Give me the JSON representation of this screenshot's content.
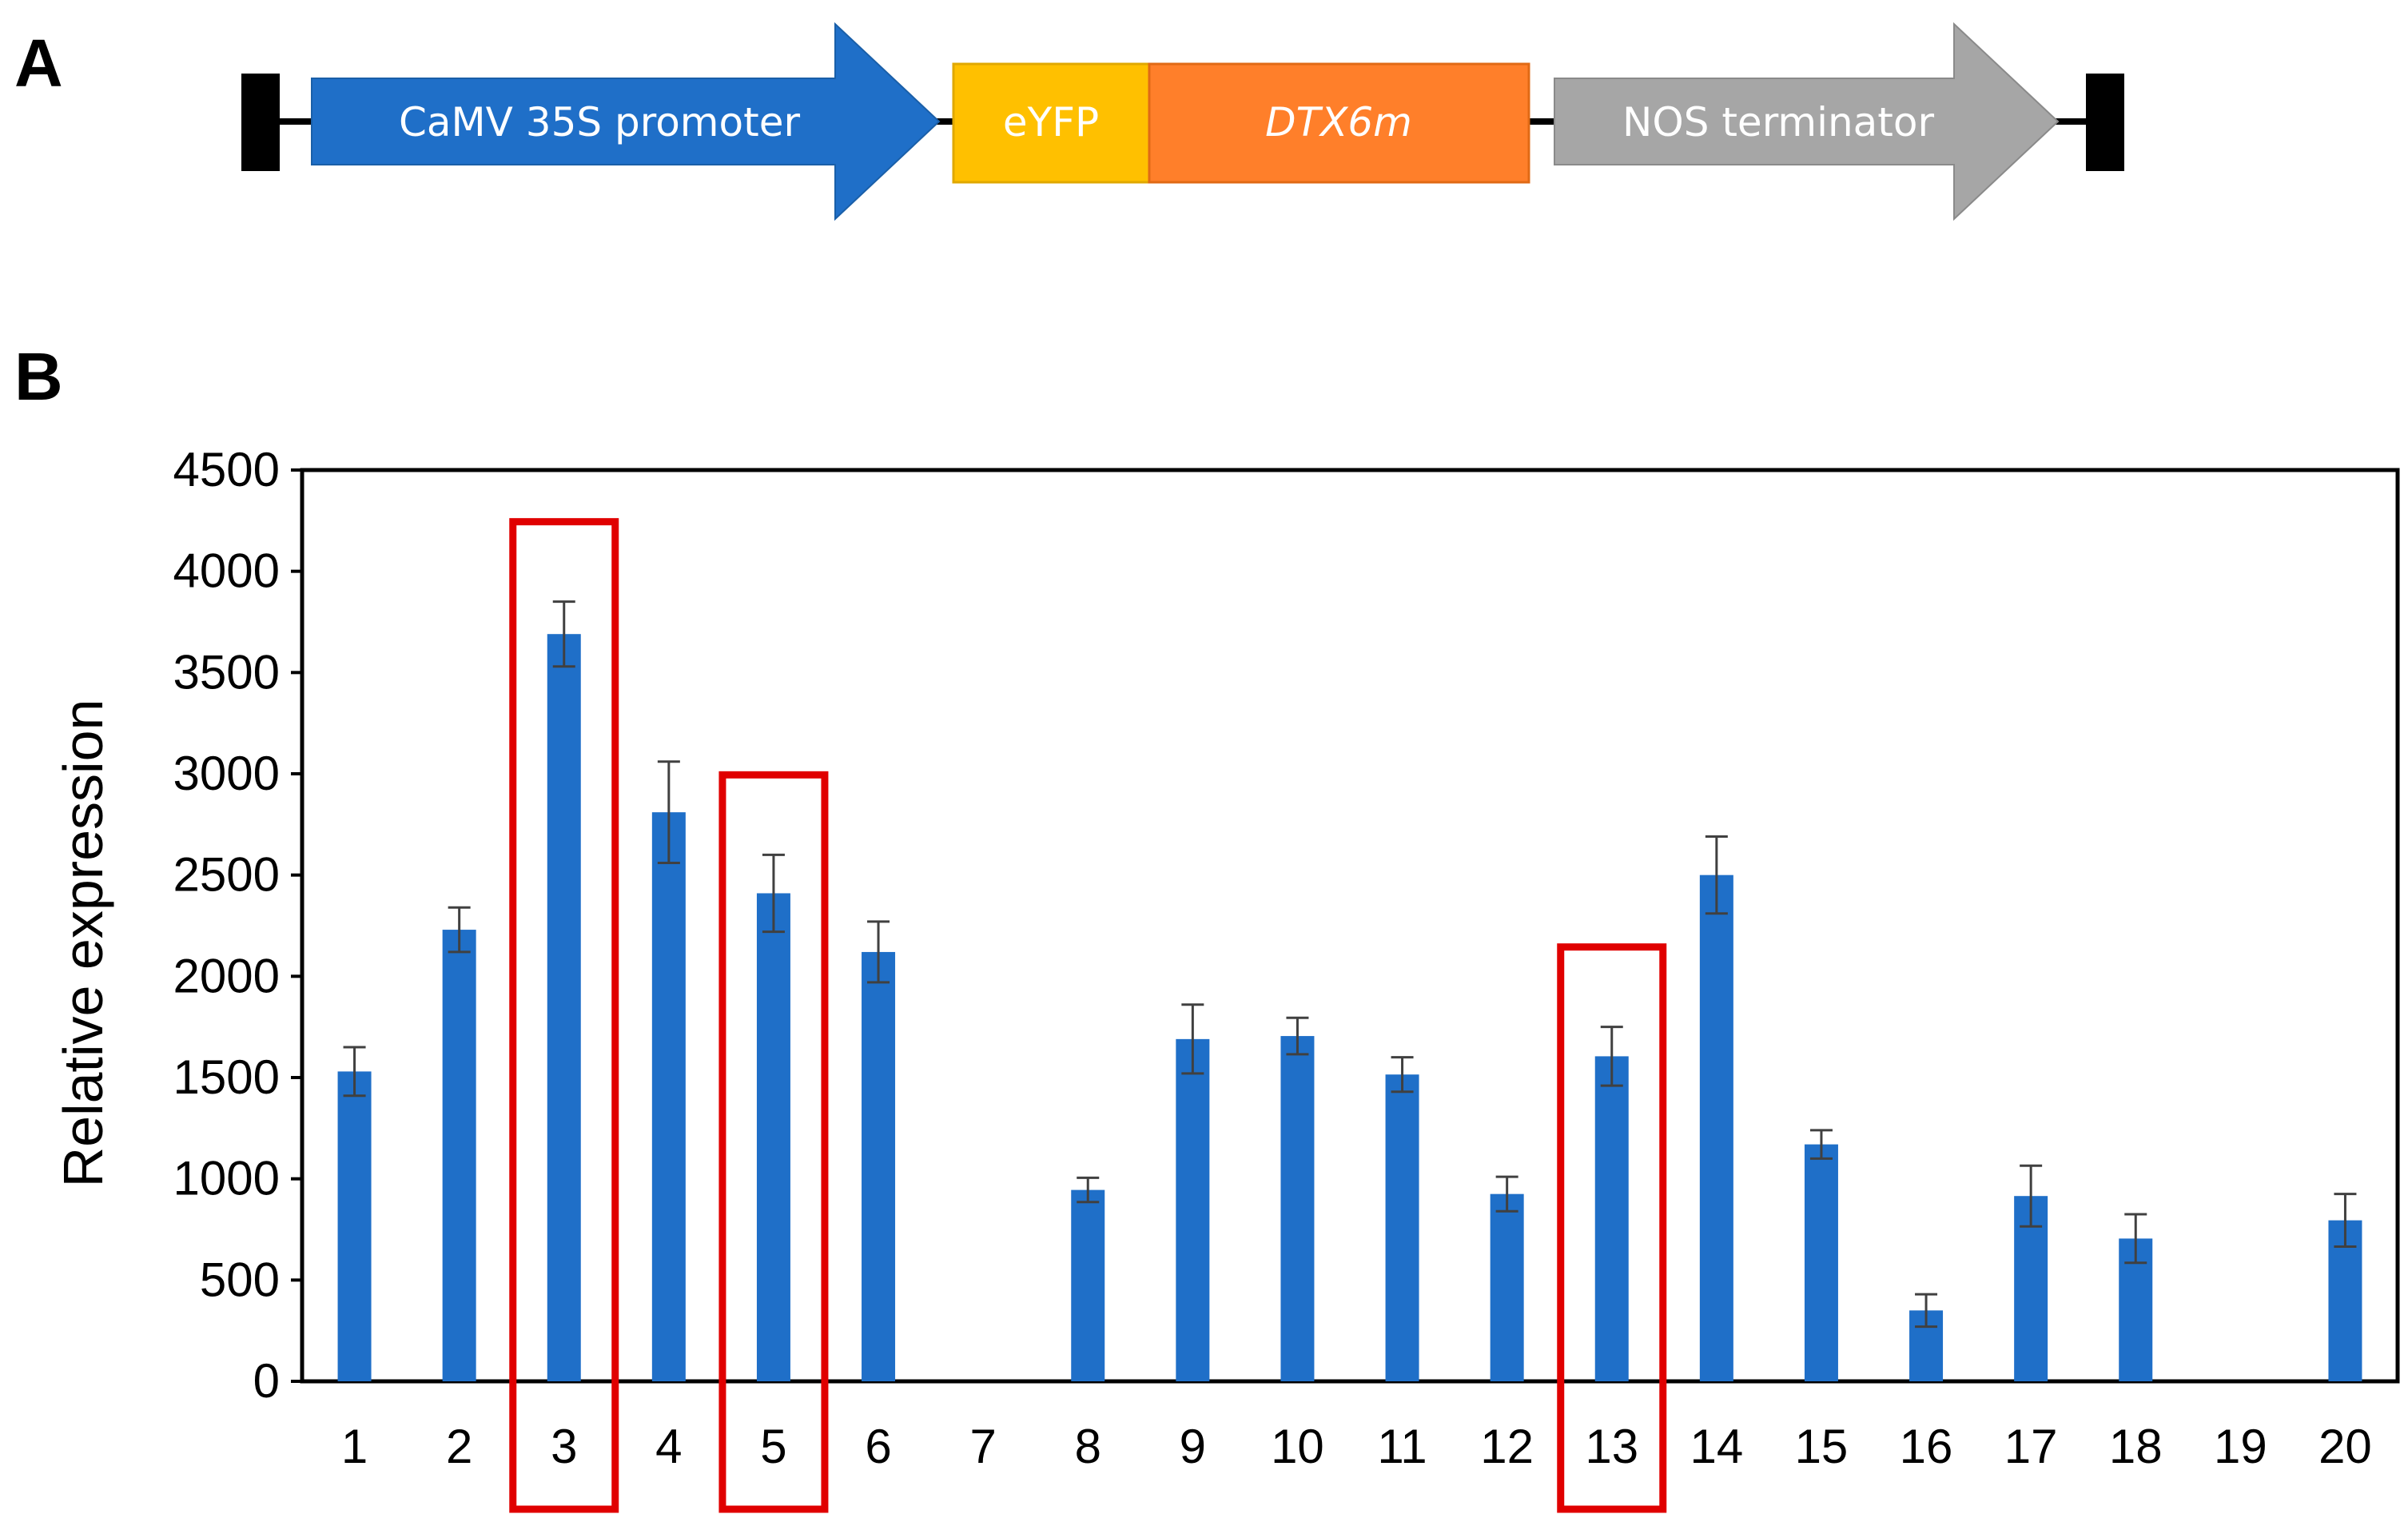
{
  "panels": {
    "a_label": "A",
    "b_label": "B"
  },
  "construct": {
    "segments": [
      {
        "key": "promoter",
        "label": "CaMV 35S promoter",
        "color": "#1f6fc8",
        "italic": false
      },
      {
        "key": "eyfp",
        "label": "eYFP",
        "color": "#ffc000",
        "italic": false
      },
      {
        "key": "gene",
        "label": "DTX6m",
        "color": "#ff7f2a",
        "italic": true
      },
      {
        "key": "terminator",
        "label": "NOS terminator",
        "color": "#a6a6a6",
        "italic": false
      }
    ]
  },
  "chart_data": {
    "type": "bar",
    "title": "",
    "xlabel": "",
    "ylabel": "Relative expression",
    "ylim": [
      0,
      4500
    ],
    "yticks": [
      0,
      500,
      1000,
      1500,
      2000,
      2500,
      3000,
      3500,
      4000,
      4500
    ],
    "categories": [
      "1",
      "2",
      "3",
      "4",
      "5",
      "6",
      "7",
      "8",
      "9",
      "10",
      "11",
      "12",
      "13",
      "14",
      "15",
      "16",
      "17",
      "18",
      "19",
      "20"
    ],
    "values": [
      1530,
      2230,
      3690,
      2810,
      2410,
      2120,
      0,
      945,
      1690,
      1705,
      1515,
      925,
      1605,
      2500,
      1170,
      350,
      915,
      705,
      0,
      795
    ],
    "errors": [
      120,
      110,
      160,
      250,
      190,
      150,
      null,
      60,
      170,
      90,
      85,
      85,
      145,
      190,
      70,
      80,
      150,
      120,
      null,
      130
    ],
    "highlighted": [
      "3",
      "5",
      "13"
    ],
    "bar_color": "#1f6fc8",
    "highlight_color": "#e00000",
    "grid": false,
    "legend": "none"
  }
}
